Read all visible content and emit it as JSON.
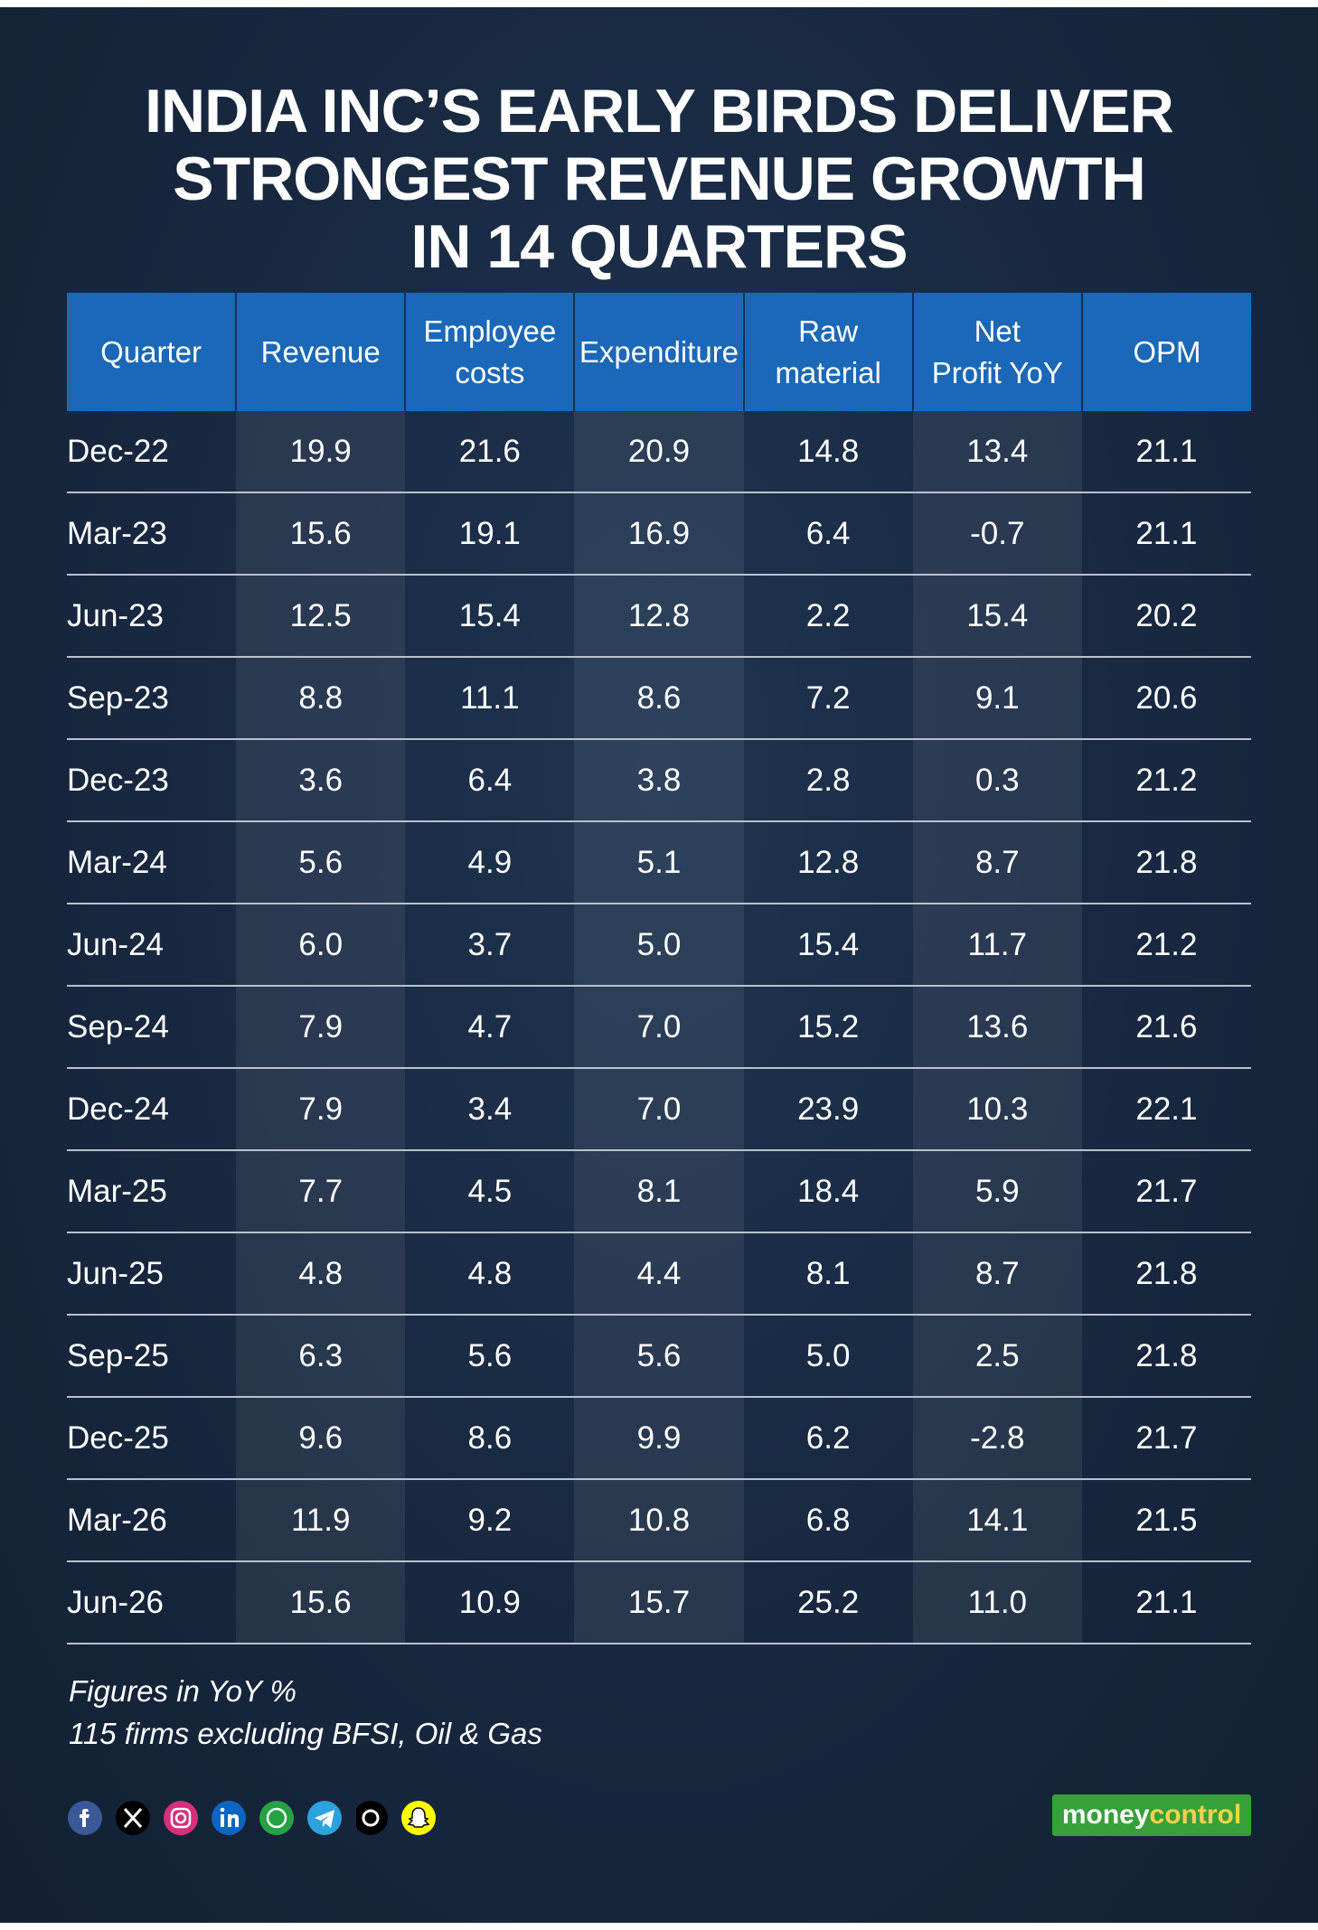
{
  "header": {
    "title_lines": [
      "INDIA INC’S EARLY BIRDS DELIVER",
      "STRONGEST REVENUE GROWTH",
      "IN 14 QUARTERS"
    ]
  },
  "table": {
    "columns": [
      [
        "Quarter"
      ],
      [
        "Revenue"
      ],
      [
        "Employee",
        "costs"
      ],
      [
        "Expenditure"
      ],
      [
        "Raw",
        "material"
      ],
      [
        "Net",
        "Profit YoY"
      ],
      [
        "OPM"
      ]
    ],
    "rows": [
      [
        "Dec-22",
        "19.9",
        "21.6",
        "20.9",
        "14.8",
        "13.4",
        "21.1"
      ],
      [
        "Mar-23",
        "15.6",
        "19.1",
        "16.9",
        "6.4",
        "-0.7",
        "21.1"
      ],
      [
        "Jun-23",
        "12.5",
        "15.4",
        "12.8",
        "2.2",
        "15.4",
        "20.2"
      ],
      [
        "Sep-23",
        "8.8",
        "11.1",
        "8.6",
        "7.2",
        "9.1",
        "20.6"
      ],
      [
        "Dec-23",
        "3.6",
        "6.4",
        "3.8",
        "2.8",
        "0.3",
        "21.2"
      ],
      [
        "Mar-24",
        "5.6",
        "4.9",
        "5.1",
        "12.8",
        "8.7",
        "21.8"
      ],
      [
        "Jun-24",
        "6.0",
        "3.7",
        "5.0",
        "15.4",
        "11.7",
        "21.2"
      ],
      [
        "Sep-24",
        "7.9",
        "4.7",
        "7.0",
        "15.2",
        "13.6",
        "21.6"
      ],
      [
        "Dec-24",
        "7.9",
        "3.4",
        "7.0",
        "23.9",
        "10.3",
        "22.1"
      ],
      [
        "Mar-25",
        "7.7",
        "4.5",
        "8.1",
        "18.4",
        "5.9",
        "21.7"
      ],
      [
        "Jun-25",
        "4.8",
        "4.8",
        "4.4",
        "8.1",
        "8.7",
        "21.8"
      ],
      [
        "Sep-25",
        "6.3",
        "5.6",
        "5.6",
        "5.0",
        "2.5",
        "21.8"
      ],
      [
        "Dec-25",
        "9.6",
        "8.6",
        "9.9",
        "6.2",
        "-2.8",
        "21.7"
      ],
      [
        "Mar-26",
        "11.9",
        "9.2",
        "10.8",
        "6.8",
        "14.1",
        "21.5"
      ],
      [
        "Jun-26",
        "15.6",
        "10.9",
        "15.7",
        "25.2",
        "11.0",
        "21.1"
      ]
    ]
  },
  "footer": {
    "notes": [
      "Figures in YoY %",
      "115 firms excluding BFSI, Oil & Gas"
    ],
    "logo": [
      "money",
      "control"
    ]
  }
}
